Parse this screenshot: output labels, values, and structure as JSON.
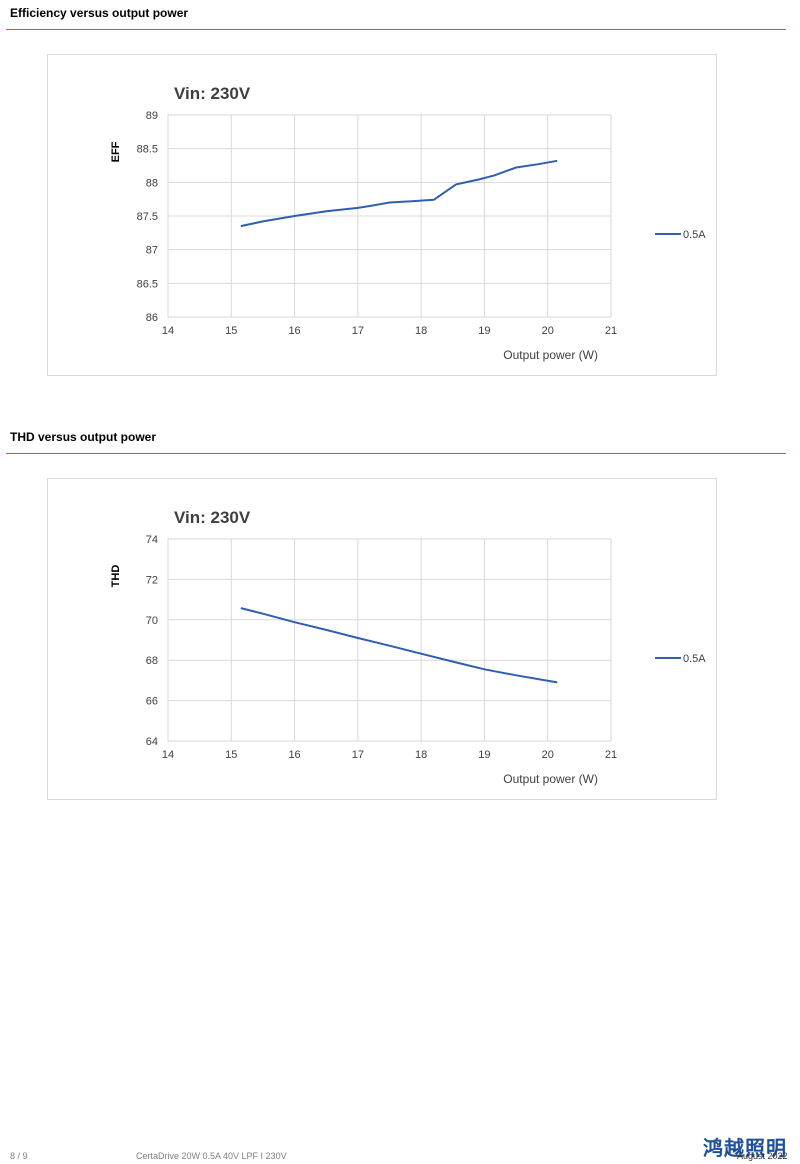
{
  "sections": [
    {
      "title": "Efficiency versus output power"
    },
    {
      "title": "THD versus output power"
    }
  ],
  "chart_data": [
    {
      "type": "line",
      "title": "Vin: 230V",
      "xlabel": "Output power (W)",
      "ylabel": "EFF",
      "xlim": [
        14,
        21
      ],
      "ylim": [
        86,
        89
      ],
      "xticks": [
        "14",
        "15",
        "16",
        "17",
        "18",
        "19",
        "20",
        "21"
      ],
      "yticks": [
        "86",
        "86.5",
        "87",
        "87.5",
        "88",
        "88.5",
        "89"
      ],
      "grid": true,
      "legend": "right",
      "series": [
        {
          "name": "0.5A",
          "color": "#2f5fae",
          "x": [
            15.15,
            15.5,
            16.0,
            16.5,
            17.0,
            17.2,
            17.5,
            17.85,
            18.2,
            18.55,
            18.9,
            19.15,
            19.5,
            19.85,
            20.15
          ],
          "y": [
            87.35,
            87.42,
            87.5,
            87.57,
            87.62,
            87.65,
            87.7,
            87.72,
            87.74,
            87.97,
            88.04,
            88.1,
            88.22,
            88.27,
            88.32
          ]
        }
      ]
    },
    {
      "type": "line",
      "title": "Vin: 230V",
      "xlabel": "Output power (W)",
      "ylabel": "THD",
      "xlim": [
        14,
        21
      ],
      "ylim": [
        64,
        74
      ],
      "xticks": [
        "14",
        "15",
        "16",
        "17",
        "18",
        "19",
        "20",
        "21"
      ],
      "yticks": [
        "64",
        "66",
        "68",
        "70",
        "72",
        "74"
      ],
      "grid": true,
      "legend": "right",
      "series": [
        {
          "name": "0.5A",
          "color": "#2f5fae",
          "x": [
            15.15,
            15.5,
            16.0,
            16.5,
            17.0,
            17.5,
            18.0,
            18.5,
            19.0,
            19.5,
            20.15
          ],
          "y": [
            70.58,
            70.3,
            69.88,
            69.5,
            69.1,
            68.72,
            68.32,
            67.93,
            67.55,
            67.25,
            66.9
          ]
        }
      ]
    }
  ],
  "footer": {
    "page": "8 / 9",
    "doc": "CertaDrive 20W 0.5A 40V LPF I 230V",
    "date": "August 2022",
    "logo": "鸿越照明"
  }
}
